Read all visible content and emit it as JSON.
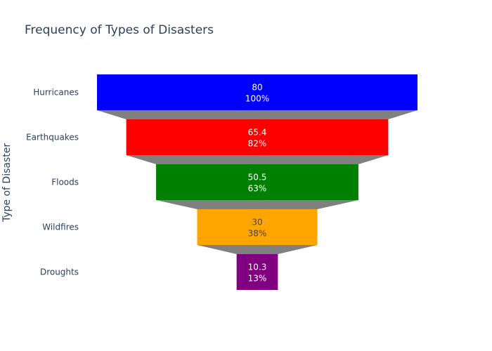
{
  "chart_data": {
    "type": "funnel",
    "title": "Frequency of Types of Disasters",
    "ylabel": "Type of Disaster",
    "xlabel": "",
    "categories": [
      "Hurricanes",
      "Earthquakes",
      "Floods",
      "Wildfires",
      "Droughts"
    ],
    "values": [
      80,
      65.4,
      50.5,
      30,
      10.3
    ],
    "value_labels": [
      "80",
      "65.4",
      "50.5",
      "30",
      "10.3"
    ],
    "percent_labels": [
      "100%",
      "82%",
      "63%",
      "38%",
      "13%"
    ],
    "colors": [
      "#0000ff",
      "#ff0000",
      "#008000",
      "#ffa500",
      "#800080"
    ],
    "label_colors": [
      "#ffffff",
      "#ffffff",
      "#ffffff",
      "#444444",
      "#ffffff"
    ],
    "connector_color": "#808080"
  }
}
